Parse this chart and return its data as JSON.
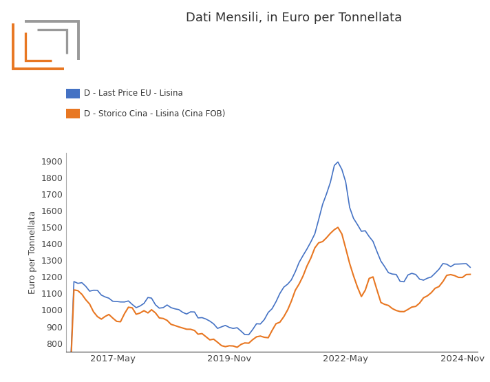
{
  "title": "Dati Mensili, in Euro per Tonnellata",
  "ylabel": "Euro per Tonnellata",
  "color_eu": "#4472C4",
  "color_cn": "#E87722",
  "legend_eu": "D - Last Price EU - Lisina",
  "legend_cn": "D - Storico Cina - Lisina (Cina FOB)",
  "ylim": [
    750,
    1950
  ],
  "yticks": [
    800,
    900,
    1000,
    1100,
    1200,
    1300,
    1400,
    1500,
    1600,
    1700,
    1800,
    1900
  ],
  "xtick_labels": [
    "2017-May",
    "2019-Nov",
    "2022-May",
    "2024-Nov"
  ],
  "background_color": "#ffffff",
  "logo_price_color": "#E87722",
  "logo_pedia_color": "#999999"
}
